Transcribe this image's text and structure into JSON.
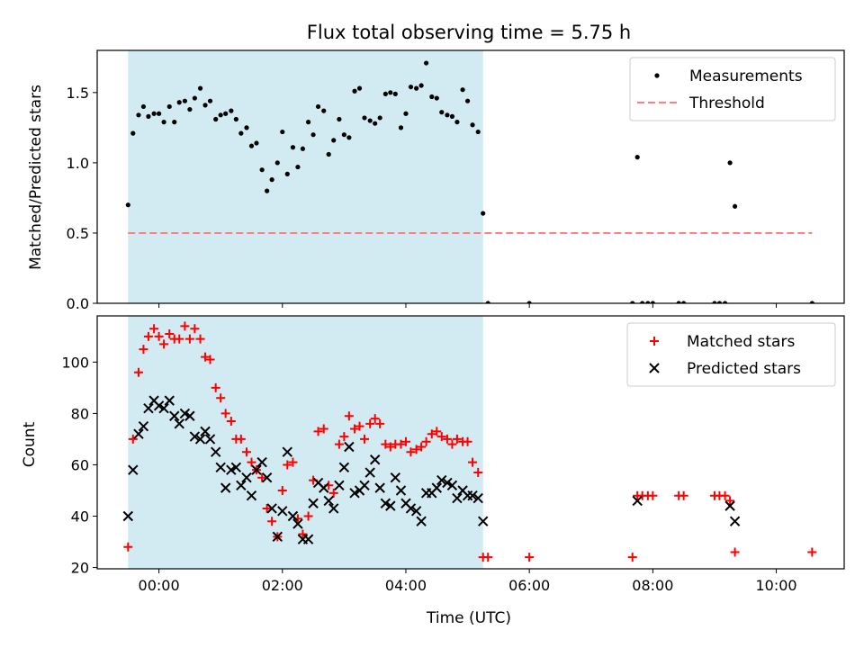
{
  "chart_data": [
    {
      "type": "scatter",
      "title": "Flux total observing time = 5.75 h",
      "xlabel": "",
      "ylabel": "Matched/Predicted stars",
      "xlim": [
        -1.0,
        11.1
      ],
      "ylim": [
        0,
        1.8
      ],
      "yticks": [
        0.0,
        0.5,
        1.0,
        1.5
      ],
      "ytick_labels": [
        "0.0",
        "0.5",
        "1.0",
        "1.5"
      ],
      "xticks": [
        0,
        2,
        4,
        6,
        8,
        10
      ],
      "shaded_span": [
        -0.5,
        5.25
      ],
      "shaded_color": "#add8e6",
      "legend_position": "top-right",
      "series": [
        {
          "name": "Measurements",
          "marker": "dot",
          "color": "#000000",
          "x": [
            -0.5,
            -0.42,
            -0.33,
            -0.25,
            -0.17,
            -0.08,
            0,
            0.08,
            0.17,
            0.25,
            0.33,
            0.42,
            0.5,
            0.58,
            0.67,
            0.75,
            0.83,
            0.92,
            1,
            1.08,
            1.17,
            1.25,
            1.33,
            1.42,
            1.5,
            1.58,
            1.67,
            1.75,
            1.83,
            1.92,
            2,
            2.08,
            2.17,
            2.25,
            2.33,
            2.42,
            2.5,
            2.58,
            2.67,
            2.75,
            2.83,
            2.92,
            3,
            3.08,
            3.17,
            3.25,
            3.33,
            3.42,
            3.5,
            3.58,
            3.67,
            3.75,
            3.83,
            3.92,
            4,
            4.08,
            4.17,
            4.25,
            4.33,
            4.42,
            4.5,
            4.58,
            4.67,
            4.75,
            4.83,
            4.92,
            5,
            5.08,
            5.17,
            5.25,
            5.33,
            6.0,
            7.67,
            7.75,
            7.83,
            7.92,
            8.0,
            8.42,
            8.5,
            9.0,
            9.08,
            9.17,
            9.25,
            9.33,
            10.58
          ],
          "y": [
            0.7,
            1.21,
            1.34,
            1.4,
            1.33,
            1.35,
            1.35,
            1.29,
            1.4,
            1.29,
            1.43,
            1.44,
            1.38,
            1.46,
            1.53,
            1.41,
            1.44,
            1.31,
            1.34,
            1.35,
            1.37,
            1.31,
            1.21,
            1.25,
            1.12,
            1.14,
            0.95,
            0.8,
            0.88,
            1.0,
            1.22,
            0.92,
            1.11,
            0.97,
            1.1,
            1.29,
            1.2,
            1.4,
            1.37,
            1.06,
            1.16,
            1.31,
            1.2,
            1.18,
            1.51,
            1.53,
            1.32,
            1.3,
            1.28,
            1.32,
            1.49,
            1.5,
            1.49,
            1.25,
            1.35,
            1.54,
            1.53,
            1.55,
            1.71,
            1.47,
            1.46,
            1.36,
            1.34,
            1.33,
            1.29,
            1.52,
            1.44,
            1.27,
            1.22,
            0.64,
            0,
            0,
            0,
            1.04,
            0,
            0,
            0,
            0,
            0,
            0,
            0,
            0,
            1.0,
            0.69,
            0
          ]
        },
        {
          "name": "Threshold",
          "line_style": "dashed",
          "color": "#ff7f7f",
          "x": [
            -0.5,
            10.58
          ],
          "y": [
            0.5,
            0.5
          ]
        }
      ]
    },
    {
      "type": "scatter",
      "title": "",
      "xlabel": "Time (UTC)",
      "ylabel": "Count",
      "xlim": [
        -1.0,
        11.1
      ],
      "ylim": [
        19.5,
        118
      ],
      "yticks": [
        20,
        40,
        60,
        80,
        100
      ],
      "ytick_labels": [
        "20",
        "40",
        "60",
        "80",
        "100"
      ],
      "xticks": [
        0,
        2,
        4,
        6,
        8,
        10
      ],
      "xtick_labels": [
        "00:00",
        "02:00",
        "04:00",
        "06:00",
        "08:00",
        "10:00"
      ],
      "shaded_span": [
        -0.5,
        5.25
      ],
      "shaded_color": "#add8e6",
      "legend_position": "top-right",
      "series": [
        {
          "name": "Matched stars",
          "marker": "plus",
          "color": "#ff0000",
          "x": [
            -0.5,
            -0.42,
            -0.33,
            -0.25,
            -0.17,
            -0.08,
            0,
            0.08,
            0.17,
            0.25,
            0.33,
            0.42,
            0.5,
            0.58,
            0.67,
            0.75,
            0.83,
            0.92,
            1,
            1.08,
            1.17,
            1.25,
            1.33,
            1.42,
            1.5,
            1.58,
            1.67,
            1.75,
            1.83,
            1.92,
            2,
            2.08,
            2.17,
            2.25,
            2.33,
            2.42,
            2.5,
            2.58,
            2.67,
            2.75,
            2.83,
            2.92,
            3,
            3.08,
            3.17,
            3.25,
            3.33,
            3.42,
            3.5,
            3.58,
            3.67,
            3.75,
            3.83,
            3.92,
            4,
            4.08,
            4.17,
            4.25,
            4.33,
            4.42,
            4.5,
            4.58,
            4.67,
            4.75,
            4.83,
            4.92,
            5,
            5.08,
            5.17,
            5.25,
            5.33,
            6.0,
            7.67,
            7.75,
            7.83,
            7.92,
            8.0,
            8.42,
            8.5,
            9.0,
            9.08,
            9.17,
            9.25,
            9.33,
            10.58
          ],
          "y": [
            28,
            70,
            96,
            105,
            110,
            113,
            110,
            107,
            111,
            109,
            109,
            114,
            109,
            113,
            109,
            102,
            101,
            90,
            86,
            80,
            77,
            70,
            70,
            65,
            61,
            58,
            55,
            43,
            38,
            32,
            50,
            60,
            61,
            39,
            33,
            40,
            54,
            73,
            74,
            52,
            49,
            68,
            71,
            79,
            74,
            75,
            70,
            76,
            78,
            76,
            68,
            67,
            68,
            68,
            69,
            65,
            66,
            67,
            69,
            72,
            73,
            71,
            70,
            68,
            70,
            69,
            69,
            61,
            57,
            24,
            24,
            24,
            24,
            48,
            48,
            48,
            48,
            48,
            48,
            48,
            48,
            48,
            46,
            26,
            26
          ]
        },
        {
          "name": "Predicted stars",
          "marker": "x",
          "color": "#000000",
          "x": [
            -0.5,
            -0.42,
            -0.33,
            -0.25,
            -0.17,
            -0.08,
            0,
            0.08,
            0.17,
            0.25,
            0.33,
            0.42,
            0.5,
            0.58,
            0.67,
            0.75,
            0.83,
            0.92,
            1,
            1.08,
            1.17,
            1.25,
            1.33,
            1.42,
            1.5,
            1.58,
            1.67,
            1.75,
            1.83,
            1.92,
            2,
            2.08,
            2.17,
            2.25,
            2.33,
            2.42,
            2.5,
            2.58,
            2.67,
            2.75,
            2.83,
            2.92,
            3,
            3.08,
            3.17,
            3.25,
            3.33,
            3.42,
            3.5,
            3.58,
            3.67,
            3.75,
            3.83,
            3.92,
            4,
            4.08,
            4.17,
            4.25,
            4.33,
            4.42,
            4.5,
            4.58,
            4.67,
            4.75,
            4.83,
            4.92,
            5,
            5.08,
            5.17,
            5.25,
            7.75,
            9.25,
            9.33
          ],
          "y": [
            40,
            58,
            72,
            75,
            82,
            85,
            83,
            82,
            85,
            79,
            76,
            80,
            79,
            71,
            70,
            73,
            70,
            65,
            59,
            51,
            58,
            59,
            52,
            55,
            48,
            58,
            61,
            55,
            43,
            32,
            42,
            65,
            40,
            37,
            31,
            31,
            45,
            53,
            51,
            46,
            43,
            52,
            59,
            67,
            49,
            50,
            52,
            57,
            62,
            51,
            45,
            44,
            55,
            50,
            45,
            43,
            42,
            38,
            49,
            49,
            51,
            54,
            53,
            52,
            47,
            50,
            48,
            48,
            47,
            38,
            46,
            44,
            38
          ]
        }
      ]
    }
  ]
}
